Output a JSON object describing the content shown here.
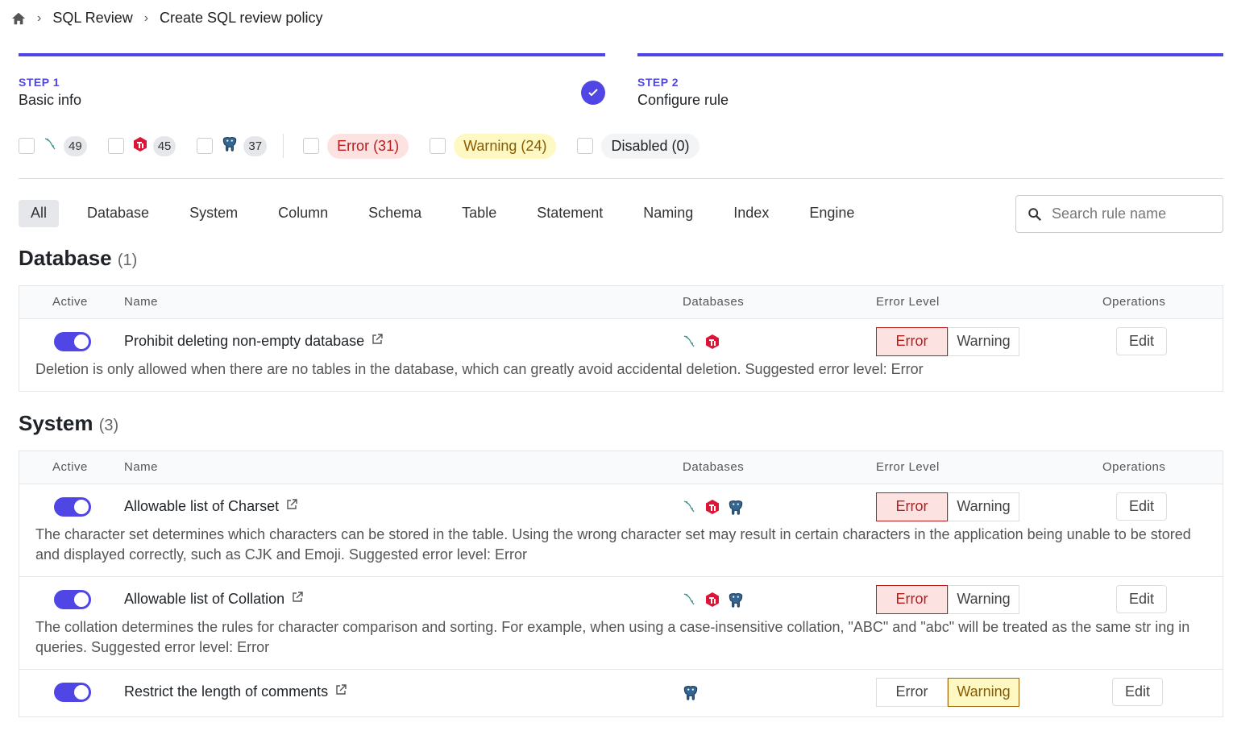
{
  "breadcrumb": {
    "items": [
      "SQL Review",
      "Create SQL review policy"
    ]
  },
  "steps": [
    {
      "number": "STEP 1",
      "title": "Basic info",
      "done": true
    },
    {
      "number": "STEP 2",
      "title": "Configure rule",
      "done": false
    }
  ],
  "filters": {
    "engines": [
      {
        "icon": "mysql-icon",
        "count": "49"
      },
      {
        "icon": "tidb-icon",
        "count": "45"
      },
      {
        "icon": "postgres-icon",
        "count": "37"
      }
    ],
    "levels": [
      {
        "label": "Error (31)",
        "bg": "#fde2e2",
        "color": "#b91c1c"
      },
      {
        "label": "Warning (24)",
        "bg": "#fef9c3",
        "color": "#8a5a00"
      },
      {
        "label": "Disabled (0)",
        "bg": "#f3f4f6",
        "color": "#222"
      }
    ]
  },
  "tabs": [
    "All",
    "Database",
    "System",
    "Column",
    "Schema",
    "Table",
    "Statement",
    "Naming",
    "Index",
    "Engine"
  ],
  "search": {
    "placeholder": "Search rule name"
  },
  "columns": {
    "active": "Active",
    "name": "Name",
    "databases": "Databases",
    "level": "Error Level",
    "ops": "Operations"
  },
  "level_labels": {
    "error": "Error",
    "warning": "Warning"
  },
  "edit_label": "Edit",
  "sections": [
    {
      "title": "Database",
      "count": "(1)",
      "rules": [
        {
          "name": "Prohibit deleting non-empty database",
          "active": true,
          "dbs": [
            "mysql",
            "tidb"
          ],
          "level": "error",
          "desc": "Deletion is only allowed when there are no tables in the database, which can greatly avoid accidental deletion. Suggested error level: Error"
        }
      ]
    },
    {
      "title": "System",
      "count": "(3)",
      "rules": [
        {
          "name": "Allowable list of Charset",
          "active": true,
          "dbs": [
            "mysql",
            "tidb",
            "postgres"
          ],
          "level": "error",
          "desc": "The character set determines which characters can be stored in the table. Using the wrong character set may result in certain characters in the application being unable to be stored and displayed correctly, such as CJK and Emoji. Suggested error level: Error"
        },
        {
          "name": "Allowable list of Collation",
          "active": true,
          "dbs": [
            "mysql",
            "tidb",
            "postgres"
          ],
          "level": "error",
          "desc": "The collation determines the rules for character comparison and sorting. For example, when using a case-insensitive collation, \"ABC\" and \"abc\" will be treated as the same str ing in queries. Suggested error level: Error"
        },
        {
          "name": "Restrict the length of comments",
          "active": true,
          "dbs": [
            "postgres"
          ],
          "level": "warning",
          "desc": ""
        }
      ]
    }
  ]
}
